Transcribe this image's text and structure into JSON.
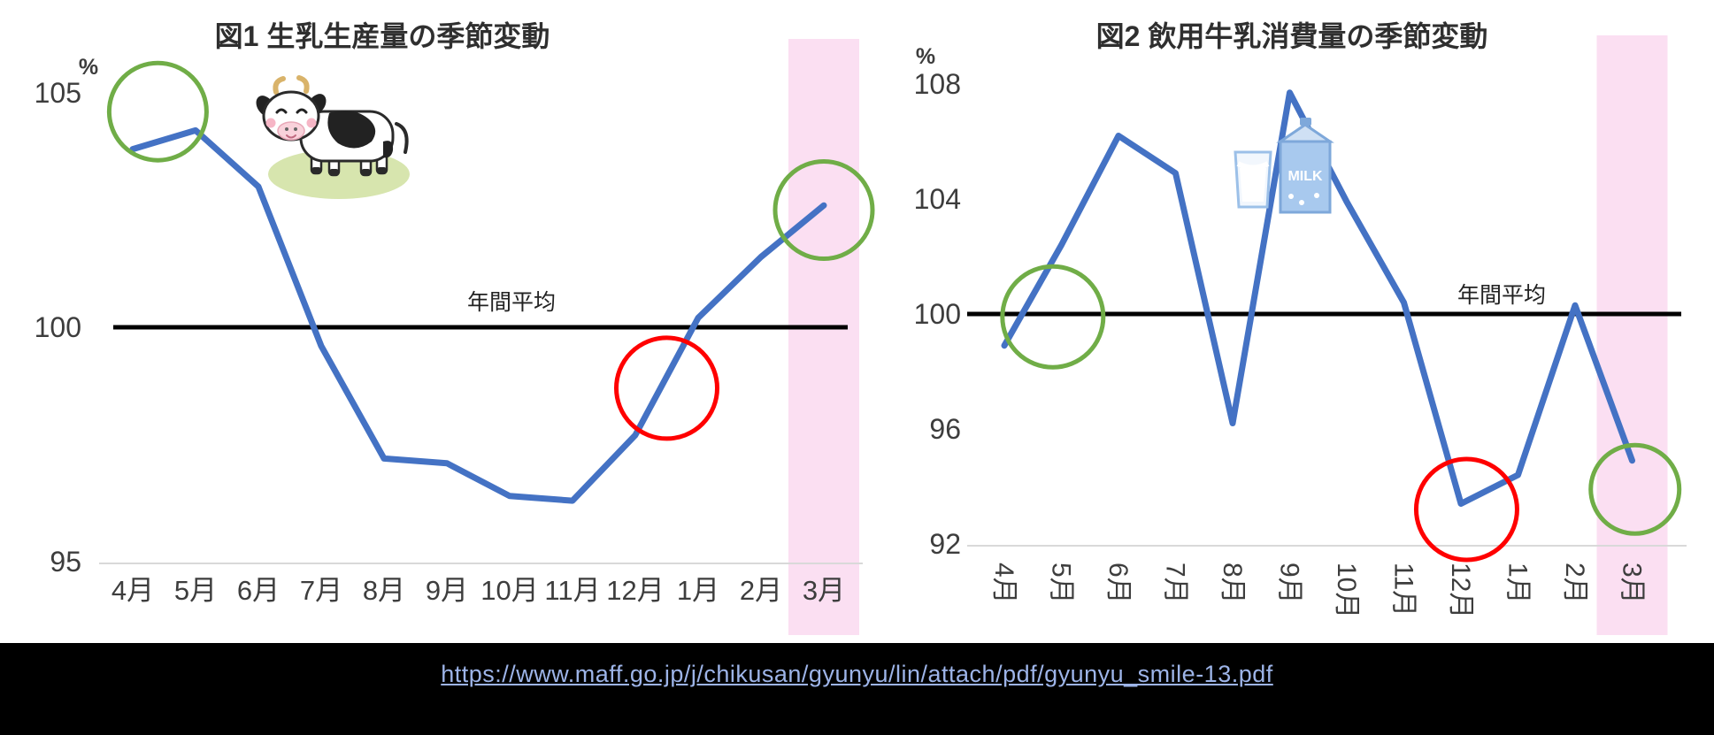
{
  "footer": {
    "url_text": "https://www.maff.go.jp/j/chikusan/gyunyu/lin/attach/pdf/gyunyu_smile-13.pdf",
    "link_color": "#9db4e8",
    "background": "#000000"
  },
  "decorations": {
    "cow_icon": "cartoon-cow-on-grass",
    "milk_icon": "milk-carton-and-glass",
    "milk_label": "MILK"
  },
  "chart_data": [
    {
      "type": "line",
      "title": "図1 生乳生産量の季節変動",
      "unit_label": "%",
      "categories": [
        "4月",
        "5月",
        "6月",
        "7月",
        "8月",
        "9月",
        "10月",
        "11月",
        "12月",
        "1月",
        "2月",
        "3月"
      ],
      "values": [
        103.8,
        104.2,
        103.0,
        99.6,
        97.2,
        97.1,
        96.4,
        96.3,
        97.7,
        100.2,
        101.5,
        102.6
      ],
      "yticks": [
        105,
        100,
        95
      ],
      "ylim": [
        95,
        105
      ],
      "avg_line": {
        "value": 100,
        "label": "年間平均"
      },
      "line_color": "#4472c4",
      "highlight_month": "3月",
      "highlight_color": "#fbdff2",
      "annotations": [
        {
          "name": "green-circle-spring-peak",
          "color": "#70ad47",
          "month_index": 0.4,
          "value": 104.6,
          "r": 55
        },
        {
          "name": "red-circle-winter-recovery",
          "color": "#ff0000",
          "month_index": 8.5,
          "value": 98.7,
          "r": 57
        },
        {
          "name": "green-circle-march-endpoint",
          "color": "#70ad47",
          "month_index": 11.0,
          "value": 102.5,
          "r": 55
        }
      ]
    },
    {
      "type": "line",
      "title": "図2 飲用牛乳消費量の季節変動",
      "unit_label": "%",
      "categories": [
        "4月",
        "5月",
        "6月",
        "7月",
        "8月",
        "9月",
        "10月",
        "11月",
        "12月",
        "1月",
        "2月",
        "3月"
      ],
      "values": [
        98.9,
        102.4,
        106.2,
        104.9,
        96.2,
        107.7,
        103.9,
        100.4,
        93.4,
        94.4,
        100.3,
        94.9
      ],
      "yticks": [
        108,
        104,
        100,
        96,
        92
      ],
      "ylim": [
        92,
        108
      ],
      "avg_line": {
        "value": 100,
        "label": "年間平均"
      },
      "line_color": "#4472c4",
      "highlight_month": "3月",
      "highlight_color": "#fbdff2",
      "annotations": [
        {
          "name": "green-circle-spring-crossing",
          "color": "#70ad47",
          "month_index": 0.85,
          "value": 99.9,
          "r": 57
        },
        {
          "name": "red-circle-december-low",
          "color": "#ff0000",
          "month_index": 8.1,
          "value": 93.2,
          "r": 57
        },
        {
          "name": "green-circle-march-endpoint",
          "color": "#70ad47",
          "month_index": 11.05,
          "value": 93.9,
          "r": 50
        }
      ]
    }
  ]
}
